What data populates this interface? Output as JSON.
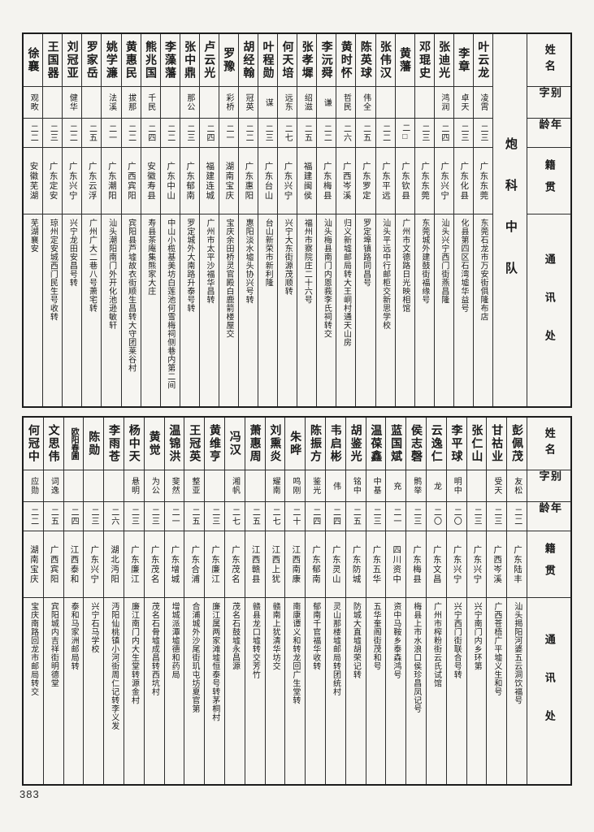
{
  "page": {
    "number": "383"
  },
  "section_label": "炮科中队",
  "header_labels": {
    "name": "姓名",
    "zi": "别字",
    "age": "年龄",
    "origin": "籍贯",
    "addr": "通讯处"
  },
  "tables": [
    {
      "entries": [
        {
          "name": "叶云龙",
          "zi": "凌霄",
          "age": "二三",
          "origin": "广东东莞",
          "addr": "东莞石龙市万安街俱隆布店"
        },
        {
          "name": "李章",
          "zi": "卓天",
          "age": "二三",
          "origin": "广东化县",
          "addr": "化县第四区石湾墟华益号"
        },
        {
          "name": "张迪光",
          "zi": "鸿润",
          "age": "二四",
          "origin": "广东兴宁",
          "addr": "汕头兴宁西门街燕昌隆"
        },
        {
          "name": "邓琨史",
          "zi": "",
          "age": "二三",
          "origin": "广东东莞",
          "addr": "东莞城外建鼓街福缘号"
        },
        {
          "name": "黄藩",
          "zi": "",
          "age": "二□",
          "origin": "广东钦县",
          "addr": "广州市文德路日光映相馆"
        },
        {
          "name": "张伟汉",
          "zi": "",
          "age": "二二",
          "origin": "广东平远",
          "addr": "汕头平远中行邮柜交新思学校"
        },
        {
          "name": "陈英球",
          "zi": "伟全",
          "age": "二五",
          "origin": "广东罗定",
          "addr": "罗定埠镇路同昌号"
        },
        {
          "name": "黄时怀",
          "zi": "哲民",
          "age": "二六",
          "origin": "广西岑溪",
          "addr": "归义新墟邮局转大王峒村通天山房"
        },
        {
          "name": "李沅舜",
          "zi": "谦",
          "age": "二二",
          "origin": "广东梅县",
          "addr": "汕头梅县南门内恩莪李氏祠转交"
        },
        {
          "name": "张孝墀",
          "zi": "绍滋",
          "age": "二五",
          "origin": "福建闽侯",
          "addr": "福州市察院庄二十六号"
        },
        {
          "name": "何天培",
          "zi": "远东",
          "age": "二七",
          "origin": "广东兴宁",
          "addr": "兴宁大东街源茂顺转"
        },
        {
          "name": "叶程勋",
          "zi": "谋",
          "age": "二三",
          "origin": "广东台山",
          "addr": "台山新荣市新利隆"
        },
        {
          "name": "胡经翰",
          "zi": "冠英",
          "age": "二二",
          "origin": "广东惠阳",
          "addr": "惠阳淡水墟头协兴号转"
        },
        {
          "name": "罗豫",
          "zi": "彩桥",
          "age": "二一",
          "origin": "湖南宝庆",
          "addr": "宝庆余田桥灵官殿白鹿箭楼屋交"
        },
        {
          "name": "卢云光",
          "zi": "",
          "age": "二四",
          "origin": "福建连城",
          "addr": "广州市太平沙福华昌转"
        },
        {
          "name": "张中鼎",
          "zi": "那公",
          "age": "二三",
          "origin": "广东郁南",
          "addr": "罗定城外大南路升泰号转"
        },
        {
          "name": "李藻藩",
          "zi": "",
          "age": "二二",
          "origin": "广东中山",
          "addr": "中山小榄基美坊白莲池何雪梅祠侧巷内第二间"
        },
        {
          "name": "熊兆国",
          "zi": "千民",
          "age": "二四",
          "origin": "安徽寿县",
          "addr": "寿县茶庵集熊家大庄"
        },
        {
          "name": "黄惠民",
          "zi": "拔那",
          "age": "二二",
          "origin": "广西宾阳",
          "addr": "宾阳县芦墟故衣街顺生昌转大守团莱谷村"
        },
        {
          "name": "姚学濂",
          "zi": "法溪",
          "age": "二一",
          "origin": "广东潮阳",
          "addr": "汕头潮阳南门外开化池逊敏轩"
        },
        {
          "name": "罗家岳",
          "zi": "",
          "age": "二五",
          "origin": "广东云浮",
          "addr": "广州广大二巷八号萧宅转"
        },
        {
          "name": "刘冠亚",
          "zi": "健华",
          "age": "二二",
          "origin": "广东兴宁",
          "addr": "兴宁龙田安昌号转"
        },
        {
          "name": "王国器",
          "zi": "",
          "age": "二三",
          "origin": "广东定安",
          "addr": "琼州定安城西门民生号收转"
        },
        {
          "name": "徐襄",
          "zi": "观畋",
          "age": "二二",
          "origin": "安徽芜湖",
          "addr": "芜湖襄安"
        }
      ]
    },
    {
      "entries": [
        {
          "name": "彭佩茂",
          "zi": "友松",
          "age": "二二",
          "origin": "广东陆丰",
          "addr": "汕头揭阳河婆五云洞饮福号"
        },
        {
          "name": "甘祜业",
          "zi": "受天",
          "age": "二三",
          "origin": "广西岑溪",
          "addr": "广西苍梧广平墟义生和号"
        },
        {
          "name": "张仁山",
          "zi": "",
          "age": "二三",
          "origin": "广东兴宁",
          "addr": "兴宁南门内乡环第"
        },
        {
          "name": "李平球",
          "zi": "明中",
          "age": "二〇",
          "origin": "广东兴宁",
          "addr": "兴宁西门街联合号转"
        },
        {
          "name": "云逸仁",
          "zi": "龙",
          "age": "二〇",
          "origin": "广东文昌",
          "addr": "广州市榨粉街云氏试馆"
        },
        {
          "name": "侯志磬",
          "zi": "鹘举",
          "age": "二三",
          "origin": "广东梅县",
          "addr": "梅县上市水浪口侯珍昌凤记号"
        },
        {
          "name": "蓝国斌",
          "zi": "充",
          "age": "二一",
          "origin": "四川资中",
          "addr": "资中马鞍乡泰森鸿号"
        },
        {
          "name": "温葆鑫",
          "zi": "中基",
          "age": "二三",
          "origin": "广东五华",
          "addr": "五华奎阁街茂和号"
        },
        {
          "name": "胡鉴光",
          "zi": "铭中",
          "age": "二五",
          "origin": "广东防城",
          "addr": "防城大直墟胡荣记转"
        },
        {
          "name": "韦启彬",
          "zi": "伟",
          "age": "二四",
          "origin": "广东灵山",
          "addr": "灵山那楼墟邮局转团统村"
        },
        {
          "name": "陈振方",
          "zi": "鉴光",
          "age": "二四",
          "origin": "广东郁南",
          "addr": "郁南千官福华收转"
        },
        {
          "name": "朱晔",
          "zi": "鸣刚",
          "age": "二十",
          "origin": "江西南康",
          "addr": "南康谭义和转龙回广生堂转"
        },
        {
          "name": "刘熏炎",
          "zi": "耀南",
          "age": "二七",
          "origin": "江西上犹",
          "addr": "赣南上犹清华坊交"
        },
        {
          "name": "萧惠周",
          "zi": "",
          "age": "二五",
          "origin": "江西赣县",
          "addr": "赣县龙口墟转交芳竹"
        },
        {
          "name": "冯汉",
          "zi": "湘帆",
          "age": "二七",
          "origin": "广东茂名",
          "addr": "茂名石鼓墟永昌源"
        },
        {
          "name": "黄维亨",
          "zi": "",
          "age": "二三",
          "origin": "广东廉江",
          "addr": "廉江属两家滩墟恒泰号转茅桐村"
        },
        {
          "name": "王冠英",
          "zi": "整亚",
          "age": "二五",
          "origin": "广东合浦",
          "addr": "合浦城外沙尾街玑屯坊夏官第"
        },
        {
          "name": "温锦洪",
          "zi": "斐然",
          "age": "二一",
          "origin": "广东增城",
          "addr": "增城派潭墟德和药局"
        },
        {
          "name": "黄觉",
          "zi": "为公",
          "age": "二三",
          "origin": "广东茂名",
          "addr": "茂名石骨墟成昌转西坑村"
        },
        {
          "name": "杨中天",
          "zi": "悬明",
          "age": "二三",
          "origin": "广东廉江",
          "addr": "廉江南门内大生堂转源金村"
        },
        {
          "name": "李雨苍",
          "zi": "",
          "age": "二六",
          "origin": "湖北沔阳",
          "addr": "沔阳仙桃镇小河街周仁记转李义发"
        },
        {
          "name": "陈勋",
          "zi": "",
          "age": "二三",
          "origin": "广东兴宁",
          "addr": "兴宁石马学校"
        },
        {
          "name": "欧阳春圃",
          "zi": "",
          "age": "二四",
          "origin": "江西泰和",
          "addr": "泰和马家洲邮局转"
        },
        {
          "name": "文思伟",
          "zi": "词逸",
          "age": "二五",
          "origin": "广西宾阳",
          "addr": "宾阳城内吉祥街明德堂"
        },
        {
          "name": "何冠中",
          "zi": "应勋",
          "age": "二二",
          "origin": "湖南宝庆",
          "addr": "宝庆南路回龙市邮局转交"
        }
      ]
    }
  ]
}
